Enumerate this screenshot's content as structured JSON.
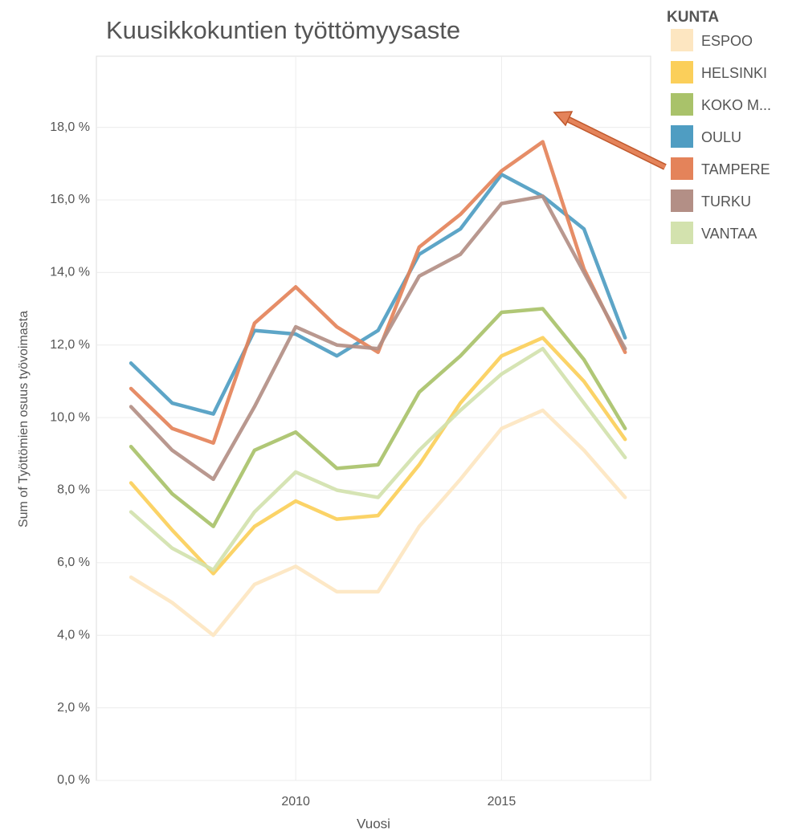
{
  "chart_data": {
    "type": "line",
    "title": "Kuusikkokuntien työttömyysaste",
    "x_label": "Vuosi",
    "y_label": "Sum of Työttömien osuus työvoimasta",
    "legend_title": "KUNTA",
    "legend": "right",
    "grid": true,
    "x": [
      2006,
      2007,
      2008,
      2009,
      2010,
      2011,
      2012,
      2013,
      2014,
      2015,
      2016,
      2017,
      2018
    ],
    "xlim": [
      2005.16,
      2018.62
    ],
    "xticks": [
      2010,
      2015
    ],
    "ylim": [
      0,
      19.96
    ],
    "yticks": [
      {
        "value": 0,
        "label": "0,0 %"
      },
      {
        "value": 2,
        "label": "2,0 %"
      },
      {
        "value": 4,
        "label": "4,0 %"
      },
      {
        "value": 6,
        "label": "6,0 %"
      },
      {
        "value": 8,
        "label": "8,0 %"
      },
      {
        "value": 10,
        "label": "10,0 %"
      },
      {
        "value": 12,
        "label": "12,0 %"
      },
      {
        "value": 14,
        "label": "14,0 %"
      },
      {
        "value": 16,
        "label": "16,0 %"
      },
      {
        "value": 18,
        "label": "18,0 %"
      }
    ],
    "series": [
      {
        "name": "ESPOO",
        "color": "#fde6c1",
        "values": [
          5.6,
          4.9,
          4.0,
          5.4,
          5.9,
          5.2,
          5.2,
          7.0,
          8.3,
          9.7,
          10.2,
          9.1,
          7.8
        ]
      },
      {
        "name": "HELSINKI",
        "color": "#fbcf5a",
        "values": [
          8.2,
          6.9,
          5.7,
          7.0,
          7.7,
          7.2,
          7.3,
          8.7,
          10.4,
          11.7,
          12.2,
          11.0,
          9.4
        ]
      },
      {
        "name": "KOKO M...",
        "color": "#a9c26a",
        "values": [
          9.2,
          7.9,
          7.0,
          9.1,
          9.6,
          8.6,
          8.7,
          10.7,
          11.7,
          12.9,
          13.0,
          11.6,
          9.7
        ]
      },
      {
        "name": "OULU",
        "color": "#4f9dc2",
        "values": [
          11.5,
          10.4,
          10.1,
          12.4,
          12.3,
          11.7,
          12.4,
          14.5,
          15.2,
          16.7,
          16.1,
          15.2,
          12.2
        ]
      },
      {
        "name": "TAMPERE",
        "color": "#e4835a",
        "values": [
          10.8,
          9.7,
          9.3,
          12.6,
          13.6,
          12.5,
          11.8,
          14.7,
          15.6,
          16.8,
          17.6,
          14.1,
          11.8
        ]
      },
      {
        "name": "TURKU",
        "color": "#b38f86",
        "values": [
          10.3,
          9.1,
          8.3,
          10.3,
          12.5,
          12.0,
          11.9,
          13.9,
          14.5,
          15.9,
          16.1,
          14.0,
          11.9
        ]
      },
      {
        "name": "VANTAA",
        "color": "#d3e2ae",
        "values": [
          7.4,
          6.4,
          5.8,
          7.4,
          8.5,
          8.0,
          7.8,
          9.1,
          10.2,
          11.2,
          11.9,
          10.4,
          8.9
        ]
      }
    ]
  }
}
